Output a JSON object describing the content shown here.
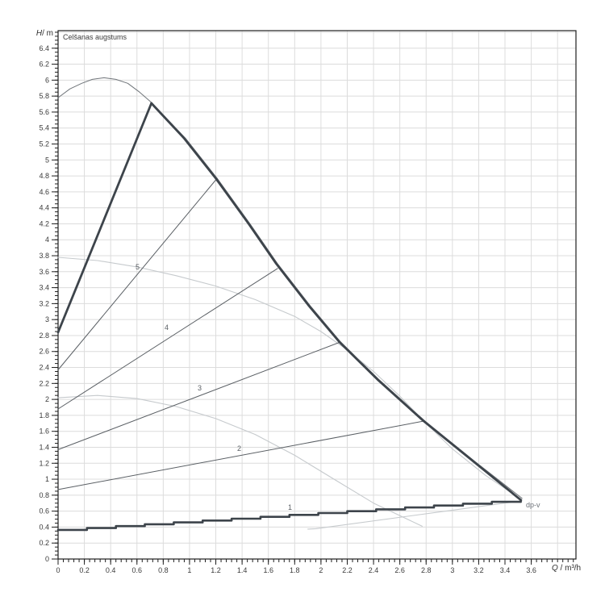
{
  "chart": {
    "title": "Celšanas augstums",
    "y_axis_symbol": "H",
    "y_axis_unit": "/ m",
    "x_axis_symbol": "Q",
    "x_axis_unit": " / m³/h",
    "mode_label": "dp-v",
    "curve_labels": [
      {
        "text": "5"
      },
      {
        "text": "4"
      },
      {
        "text": "3"
      },
      {
        "text": "2"
      },
      {
        "text": "1"
      }
    ],
    "colors": {
      "background": "#ffffff",
      "frame": "#1f1f1f",
      "grid": "#dcdcdc",
      "tick": "#1f1f1f",
      "tick_label": "#3a3a3a",
      "bold_envelope": "#3d444b",
      "max_speed_thin": "#70757a",
      "setting_curve": "#5a5f64",
      "light_curve": "#c6cacd",
      "mode_label_color": "#6e737a"
    }
  },
  "chart_data": {
    "type": "line",
    "title": "Celšanas augstums",
    "xlabel": "Q / m³/h",
    "ylabel": "H / m",
    "xlim": [
      0,
      3.94
    ],
    "ylim": [
      0,
      6.62
    ],
    "grid": true,
    "x_tick_step": 0.2,
    "y_tick_step": 0.2,
    "x_minor_step": 0.04,
    "y_minor_step": 0.05,
    "x_tick_labels": [
      "0",
      "0.2",
      "0.4",
      "0.6",
      "0.8",
      "1",
      "1.2",
      "1.4",
      "1.6",
      "1.8",
      "2",
      "2.2",
      "2.4",
      "2.6",
      "2.8",
      "3",
      "3.2",
      "3.4",
      "3.6"
    ],
    "y_tick_labels": [
      "0",
      "0.2",
      "0.4",
      "0.6",
      "0.8",
      "1",
      "1.2",
      "1.4",
      "1.6",
      "1.8",
      "2",
      "2.2",
      "2.4",
      "2.6",
      "2.8",
      "3",
      "3.2",
      "3.4",
      "3.6",
      "3.8",
      "4",
      "4.2",
      "4.4",
      "4.6",
      "4.8",
      "5",
      "5.2",
      "5.4",
      "5.6",
      "5.8",
      "6",
      "6.2",
      "6.4"
    ],
    "series": [
      {
        "name": "max-speed-curve",
        "style": "thin",
        "points": [
          [
            0,
            5.78
          ],
          [
            0.09,
            5.89
          ],
          [
            0.18,
            5.96
          ],
          [
            0.26,
            6.01
          ],
          [
            0.35,
            6.03
          ],
          [
            0.44,
            6.01
          ],
          [
            0.53,
            5.96
          ],
          [
            0.62,
            5.85
          ],
          [
            0.71,
            5.72
          ],
          [
            0.97,
            5.27
          ],
          [
            1.21,
            4.77
          ],
          [
            1.46,
            4.2
          ],
          [
            1.67,
            3.7
          ],
          [
            1.92,
            3.17
          ],
          [
            2.15,
            2.72
          ],
          [
            2.44,
            2.25
          ],
          [
            2.79,
            1.73
          ],
          [
            3.18,
            1.21
          ],
          [
            3.53,
            0.76
          ]
        ]
      },
      {
        "name": "light-curve-upper",
        "style": "light",
        "points": [
          [
            0,
            3.78
          ],
          [
            0.3,
            3.74
          ],
          [
            0.6,
            3.66
          ],
          [
            0.9,
            3.55
          ],
          [
            1.2,
            3.42
          ],
          [
            1.5,
            3.25
          ],
          [
            1.8,
            3.04
          ],
          [
            2.0,
            2.85
          ],
          [
            2.2,
            2.62
          ],
          [
            2.4,
            2.35
          ],
          [
            2.6,
            2.04
          ],
          [
            2.8,
            1.7
          ],
          [
            3.0,
            1.38
          ],
          [
            3.25,
            1.05
          ],
          [
            3.53,
            0.74
          ]
        ]
      },
      {
        "name": "light-curve-lower",
        "style": "light",
        "points": [
          [
            0,
            2.02
          ],
          [
            0.3,
            2.05
          ],
          [
            0.6,
            2.01
          ],
          [
            0.9,
            1.91
          ],
          [
            1.2,
            1.76
          ],
          [
            1.5,
            1.56
          ],
          [
            1.8,
            1.3
          ],
          [
            2.1,
            1.0
          ],
          [
            2.4,
            0.7
          ],
          [
            2.77,
            0.41
          ]
        ]
      },
      {
        "name": "light-line-min",
        "style": "light",
        "points": [
          [
            1.9,
            0.375
          ],
          [
            1.96,
            0.38
          ],
          [
            3.53,
            0.73
          ]
        ]
      },
      {
        "name": "setting-curve-5",
        "style": "setting",
        "points": [
          [
            0,
            2.37
          ],
          [
            1.21,
            4.77
          ]
        ]
      },
      {
        "name": "setting-curve-4",
        "style": "setting",
        "points": [
          [
            0,
            1.88
          ],
          [
            1.67,
            3.64
          ]
        ]
      },
      {
        "name": "setting-curve-3",
        "style": "setting",
        "points": [
          [
            0,
            1.37
          ],
          [
            2.15,
            2.72
          ]
        ]
      },
      {
        "name": "setting-curve-2",
        "style": "setting",
        "points": [
          [
            0,
            0.87
          ],
          [
            2.79,
            1.73
          ]
        ]
      },
      {
        "name": "envelope-upper-line",
        "style": "bold",
        "points": [
          [
            0,
            2.84
          ],
          [
            0.71,
            5.71
          ]
        ]
      },
      {
        "name": "envelope-descent",
        "style": "bold",
        "points": [
          [
            0.71,
            5.71
          ],
          [
            0.96,
            5.27
          ],
          [
            1.2,
            4.77
          ],
          [
            1.45,
            4.2
          ],
          [
            1.66,
            3.7
          ],
          [
            1.91,
            3.17
          ],
          [
            2.14,
            2.72
          ],
          [
            2.43,
            2.25
          ],
          [
            2.78,
            1.73
          ],
          [
            3.17,
            1.21
          ],
          [
            3.52,
            0.74
          ]
        ]
      },
      {
        "name": "envelope-bottom-line",
        "style": "bold-stepped",
        "points": [
          [
            0,
            0.365
          ],
          [
            3.52,
            0.74
          ]
        ],
        "steps": 16
      }
    ],
    "annotations": [
      {
        "text": "dp-v",
        "x": 3.56,
        "y": 0.62
      },
      {
        "text": "5",
        "x": 0.61,
        "y": 3.66
      },
      {
        "text": "4",
        "x": 0.83,
        "y": 2.92
      },
      {
        "text": "3",
        "x": 1.09,
        "y": 2.16
      },
      {
        "text": "2",
        "x": 1.39,
        "y": 1.4
      },
      {
        "text": "1",
        "x": 1.78,
        "y": 0.66
      }
    ]
  }
}
